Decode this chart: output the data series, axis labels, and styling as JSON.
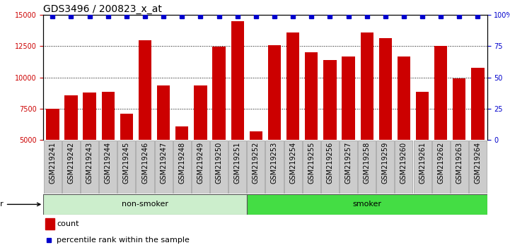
{
  "title": "GDS3496 / 200823_x_at",
  "samples": [
    "GSM219241",
    "GSM219242",
    "GSM219243",
    "GSM219244",
    "GSM219245",
    "GSM219246",
    "GSM219247",
    "GSM219248",
    "GSM219249",
    "GSM219250",
    "GSM219251",
    "GSM219252",
    "GSM219253",
    "GSM219254",
    "GSM219255",
    "GSM219256",
    "GSM219257",
    "GSM219258",
    "GSM219259",
    "GSM219260",
    "GSM219261",
    "GSM219262",
    "GSM219263",
    "GSM219264"
  ],
  "counts": [
    7500,
    8600,
    8800,
    8850,
    7100,
    13000,
    9350,
    6100,
    9350,
    12450,
    14500,
    5700,
    12600,
    13600,
    12000,
    11400,
    11700,
    13600,
    13150,
    11700,
    8850,
    12500,
    9950,
    10800
  ],
  "percentile_ranks": [
    99,
    99,
    99,
    99,
    99,
    99,
    99,
    99,
    99,
    99,
    99,
    99,
    99,
    99,
    99,
    99,
    99,
    99,
    99,
    99,
    99,
    99,
    99,
    99
  ],
  "non_smoker_range": [
    0,
    10
  ],
  "smoker_range": [
    11,
    23
  ],
  "bar_color": "#cc0000",
  "percentile_color": "#0000cc",
  "bg_nonsmoker": "#cceecc",
  "bg_smoker": "#44dd44",
  "bg_xtick": "#cccccc",
  "ylim_left": [
    5000,
    15000
  ],
  "ylim_right": [
    0,
    100
  ],
  "yticks_left": [
    5000,
    7500,
    10000,
    12500,
    15000
  ],
  "yticks_right": [
    0,
    25,
    50,
    75,
    100
  ],
  "title_fontsize": 10,
  "tick_fontsize": 7,
  "legend_fontsize": 8,
  "group_fontsize": 8,
  "other_fontsize": 8
}
